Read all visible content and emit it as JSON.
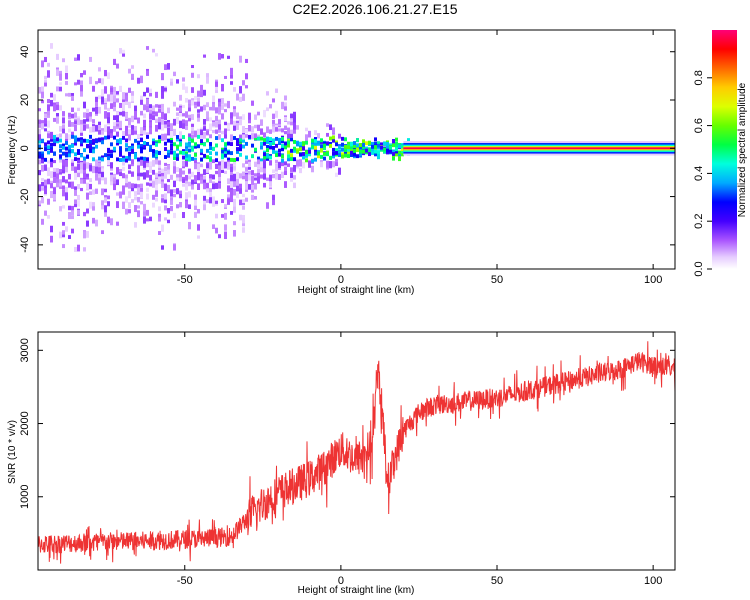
{
  "title": "C2E2.2026.106.21.27.E15",
  "chart_data": [
    {
      "type": "heatmap",
      "xlabel": "Height of straight line (km)",
      "ylabel": "Frequency (Hz)",
      "xlim": [
        -97,
        107
      ],
      "ylim": [
        -50,
        49
      ],
      "x_ticks": [
        -50,
        0,
        50,
        100
      ],
      "y_ticks": [
        -40,
        -20,
        0,
        20,
        40
      ],
      "grid": false,
      "colorbar": {
        "label": "Normalized spectral amplitude",
        "range": [
          0,
          1
        ],
        "ticks": [
          0.0,
          0.2,
          0.4,
          0.6,
          0.8
        ],
        "colors": [
          "#ffffff",
          "#d9b8ff",
          "#8a2be2",
          "#3300ff",
          "#0000ff",
          "#00bfff",
          "#00ffcc",
          "#00ff00",
          "#b0ff00",
          "#ffff00",
          "#ffa500",
          "#ff0000",
          "#ff0088"
        ]
      },
      "description_points": {
        "band_center_hz": 0,
        "continuous_band_start_km": 22,
        "noisy_scatter_range_km": [
          -97,
          22
        ],
        "strong_signal_band_hz": [
          -2,
          2
        ]
      }
    },
    {
      "type": "line",
      "xlabel": "Height of straight line (km)",
      "ylabel": "SNR (10 * v/v)",
      "xlim": [
        -97,
        107
      ],
      "ylim": [
        0,
        3250
      ],
      "x_ticks": [
        -50,
        0,
        50,
        100
      ],
      "y_ticks": [
        1000,
        2000,
        3000
      ],
      "line_color": "#ee3333",
      "grid": false,
      "series": [
        {
          "x": [
            -97,
            -90,
            -80,
            -70,
            -60,
            -50,
            -40,
            -35,
            -30,
            -25,
            -20,
            -15,
            -10,
            -5,
            0,
            5,
            10,
            12,
            15,
            20,
            25,
            30,
            40,
            50,
            60,
            70,
            80,
            90,
            95,
            100,
            107
          ],
          "values": [
            350,
            360,
            380,
            390,
            400,
            420,
            440,
            460,
            700,
            900,
            1050,
            1150,
            1250,
            1400,
            1650,
            1500,
            1700,
            2750,
            1200,
            1900,
            2150,
            2250,
            2300,
            2350,
            2450,
            2550,
            2650,
            2750,
            2850,
            2800,
            2750
          ]
        }
      ]
    }
  ]
}
